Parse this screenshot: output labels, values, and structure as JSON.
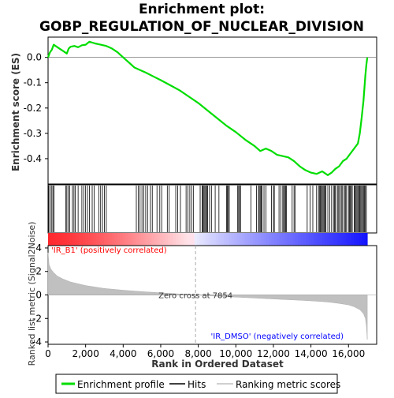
{
  "chart_data": {
    "type": "line",
    "title": "Enrichment plot:\nGOBP_REGULATION_OF_NUCLEAR_DIVISION",
    "title_lines": [
      "Enrichment plot:",
      "GOBP_REGULATION_OF_NUCLEAR_DIVISION"
    ],
    "xlabel": "Rank in Ordered Dataset",
    "ylabel_top": "Enrichment score (ES)",
    "ylabel_bottom": "Ranked list metric (Signal2Noise)",
    "x_ticks": [
      0,
      2000,
      4000,
      6000,
      8000,
      10000,
      12000,
      14000,
      16000
    ],
    "x_tick_labels": [
      "0",
      "2,000",
      "4,000",
      "6,000",
      "8,000",
      "10,000",
      "12,000",
      "14,000",
      "16,000"
    ],
    "xlim": [
      0,
      17500
    ],
    "n_genes": 17000,
    "es_ylim": [
      -0.5,
      0.08
    ],
    "es_ticks": [
      0.0,
      -0.1,
      -0.2,
      -0.3,
      -0.4
    ],
    "es_tick_labels": [
      "0.0",
      "-0.1",
      "-0.2",
      "-0.3",
      "-0.4"
    ],
    "metric_ylim": [
      -4.2,
      4.2
    ],
    "metric_ticks": [
      4,
      2,
      0,
      -2,
      -4
    ],
    "metric_tick_labels": [
      "4",
      "2",
      "0",
      "-2",
      "-4"
    ],
    "es_curve": {
      "x": [
        0,
        100,
        200,
        300,
        400,
        600,
        800,
        1000,
        1100,
        1200,
        1400,
        1600,
        1800,
        2000,
        2200,
        2500,
        2800,
        3100,
        3400,
        3700,
        4000,
        4300,
        4600,
        4900,
        5200,
        5600,
        6000,
        6500,
        7000,
        7500,
        8000,
        8500,
        9000,
        9500,
        10000,
        10500,
        11000,
        11300,
        11600,
        11900,
        12200,
        12500,
        12800,
        13100,
        13400,
        13700,
        14000,
        14300,
        14600,
        14900,
        15100,
        15300,
        15500,
        15700,
        15900,
        16100,
        16300,
        16500,
        16600,
        16700,
        16800,
        16850,
        16900,
        16950,
        17000
      ],
      "y": [
        0.0,
        0.02,
        0.03,
        0.05,
        0.045,
        0.035,
        0.025,
        0.015,
        0.035,
        0.042,
        0.045,
        0.04,
        0.048,
        0.05,
        0.062,
        0.055,
        0.05,
        0.045,
        0.035,
        0.02,
        0.0,
        -0.02,
        -0.04,
        -0.05,
        -0.06,
        -0.075,
        -0.09,
        -0.11,
        -0.13,
        -0.155,
        -0.18,
        -0.21,
        -0.24,
        -0.27,
        -0.295,
        -0.325,
        -0.35,
        -0.37,
        -0.36,
        -0.37,
        -0.385,
        -0.39,
        -0.395,
        -0.41,
        -0.43,
        -0.445,
        -0.455,
        -0.46,
        -0.45,
        -0.465,
        -0.455,
        -0.44,
        -0.43,
        -0.41,
        -0.4,
        -0.38,
        -0.36,
        -0.34,
        -0.3,
        -0.24,
        -0.17,
        -0.12,
        -0.07,
        -0.03,
        0.0
      ]
    },
    "hits": [
      40,
      120,
      200,
      260,
      320,
      950,
      1000,
      1080,
      1150,
      1300,
      1380,
      1450,
      1600,
      1800,
      1900,
      2000,
      2100,
      2200,
      2350,
      2450,
      2700,
      2800,
      2900,
      3000,
      3100,
      4700,
      4800,
      4900,
      5000,
      5100,
      5200,
      5300,
      5450,
      5550,
      5800,
      5950,
      6050,
      6350,
      6450,
      6800,
      6900,
      7050,
      7350,
      7450,
      7550,
      7650,
      7750,
      8100,
      8200,
      8250,
      8300,
      8350,
      8400,
      8450,
      8500,
      8600,
      8700,
      8900,
      9100,
      9500,
      9550,
      9600,
      9650,
      10100,
      10150,
      10200,
      10250,
      10800,
      11100,
      11200,
      11250,
      11300,
      11350,
      11400,
      11500,
      11600,
      11900,
      12000,
      12050,
      12300,
      12400,
      12500,
      12550,
      12600,
      12650,
      12700,
      13000,
      13100,
      13150,
      13800,
      13950,
      14100,
      14300,
      14400,
      14450,
      14500,
      14550,
      14600,
      14650,
      14700,
      14750,
      14800,
      14900,
      15000,
      15100,
      15200,
      15250,
      15300,
      15400,
      15450,
      15500,
      15600,
      15650,
      15700,
      15800,
      15850,
      15900,
      16000,
      16050,
      16100,
      16150,
      16200,
      16300,
      16350,
      16400,
      16450,
      16500,
      16550,
      16600,
      16650,
      16700,
      16750,
      16800,
      16850,
      16900,
      16950
    ],
    "metric_curve": {
      "x": [
        0,
        50,
        150,
        300,
        500,
        800,
        1200,
        2000,
        3000,
        4000,
        5000,
        6000,
        7000,
        7854,
        8500,
        9500,
        10500,
        11500,
        12500,
        13500,
        14500,
        15000,
        15500,
        16000,
        16300,
        16600,
        16800,
        16900,
        16950,
        17000
      ],
      "y": [
        3.6,
        2.6,
        2.2,
        1.9,
        1.6,
        1.35,
        1.1,
        0.8,
        0.55,
        0.4,
        0.28,
        0.18,
        0.08,
        0.0,
        -0.07,
        -0.15,
        -0.22,
        -0.3,
        -0.38,
        -0.46,
        -0.55,
        -0.62,
        -0.72,
        -0.85,
        -1.0,
        -1.25,
        -1.6,
        -2.0,
        -2.6,
        -3.8
      ]
    },
    "zero_cross": 7854,
    "zero_cross_label": "Zero cross at 7854",
    "pos_label": "'IR_B1' (positively correlated)",
    "neg_label": "'IR_DMSO' (negatively correlated)",
    "legend": {
      "items": [
        {
          "label": "Enrichment profile",
          "color": "#00dd00"
        },
        {
          "label": "Hits",
          "color": "#000000"
        },
        {
          "label": "Ranking metric scores",
          "color": "#c0c0c0"
        }
      ]
    },
    "colors": {
      "es_line": "#00dd00",
      "metric_fill": "#c0c0c0",
      "pos_label": "#ff0000",
      "neg_label": "#0000ff",
      "heat_red": "#ff0000",
      "heat_blue": "#0000ff"
    }
  }
}
